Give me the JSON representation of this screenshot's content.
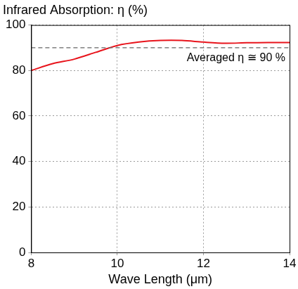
{
  "chart_data": {
    "type": "line",
    "title": "Infrared Absorption: η (%)",
    "x_label": "Wave Length (μm)",
    "x": [
      8,
      8.5,
      9,
      9.5,
      10,
      10.5,
      11,
      11.5,
      12,
      12.5,
      13,
      13.5,
      14
    ],
    "values": [
      80,
      83,
      85,
      88,
      91,
      92.5,
      93.2,
      93.2,
      92.5,
      92,
      92.2,
      92.3,
      92.3
    ],
    "color": "#e8141c",
    "xlim": [
      8,
      14
    ],
    "xticks": [
      8,
      10,
      12,
      14
    ],
    "ylim": [
      0,
      100
    ],
    "yticks": [
      0,
      20,
      40,
      60,
      80,
      100
    ],
    "grid": true,
    "reference_line": {
      "y": 90,
      "label": "Averaged η ≅ 90 %",
      "color": "#666666",
      "line_style": "dashed"
    }
  }
}
